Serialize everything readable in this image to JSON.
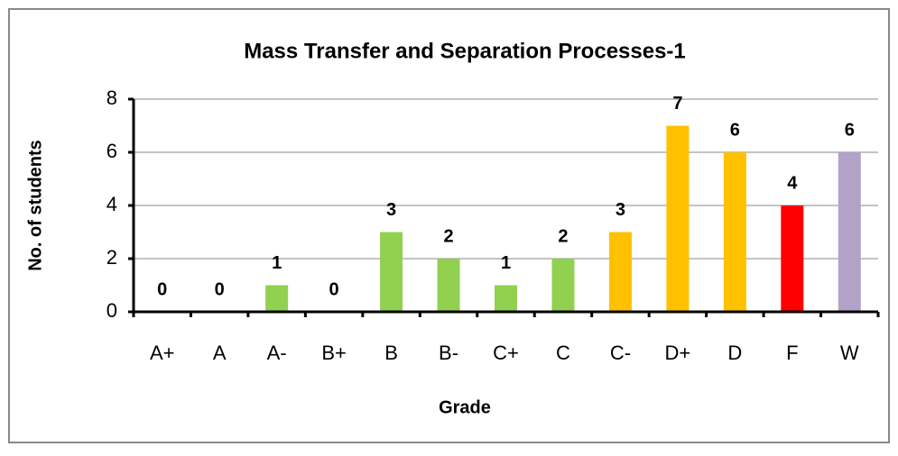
{
  "chart_data": {
    "type": "bar",
    "title": "Mass Transfer and Separation Processes-1",
    "x_label": "Grade",
    "y_label": "No. of students",
    "categories": [
      "A+",
      "A",
      "A-",
      "B+",
      "B",
      "B-",
      "C+",
      "C",
      "C-",
      "D+",
      "D",
      "F",
      "W"
    ],
    "values": [
      0,
      0,
      1,
      0,
      3,
      2,
      1,
      2,
      3,
      7,
      6,
      4,
      6
    ],
    "colors": [
      "#92d050",
      "#92d050",
      "#92d050",
      "#92d050",
      "#92d050",
      "#92d050",
      "#92d050",
      "#92d050",
      "#ffc000",
      "#ffc000",
      "#ffc000",
      "#ff0000",
      "#b3a2c7"
    ],
    "ylim": [
      0,
      8
    ],
    "yticks": [
      0,
      2,
      4,
      6,
      8
    ],
    "grid": true
  }
}
